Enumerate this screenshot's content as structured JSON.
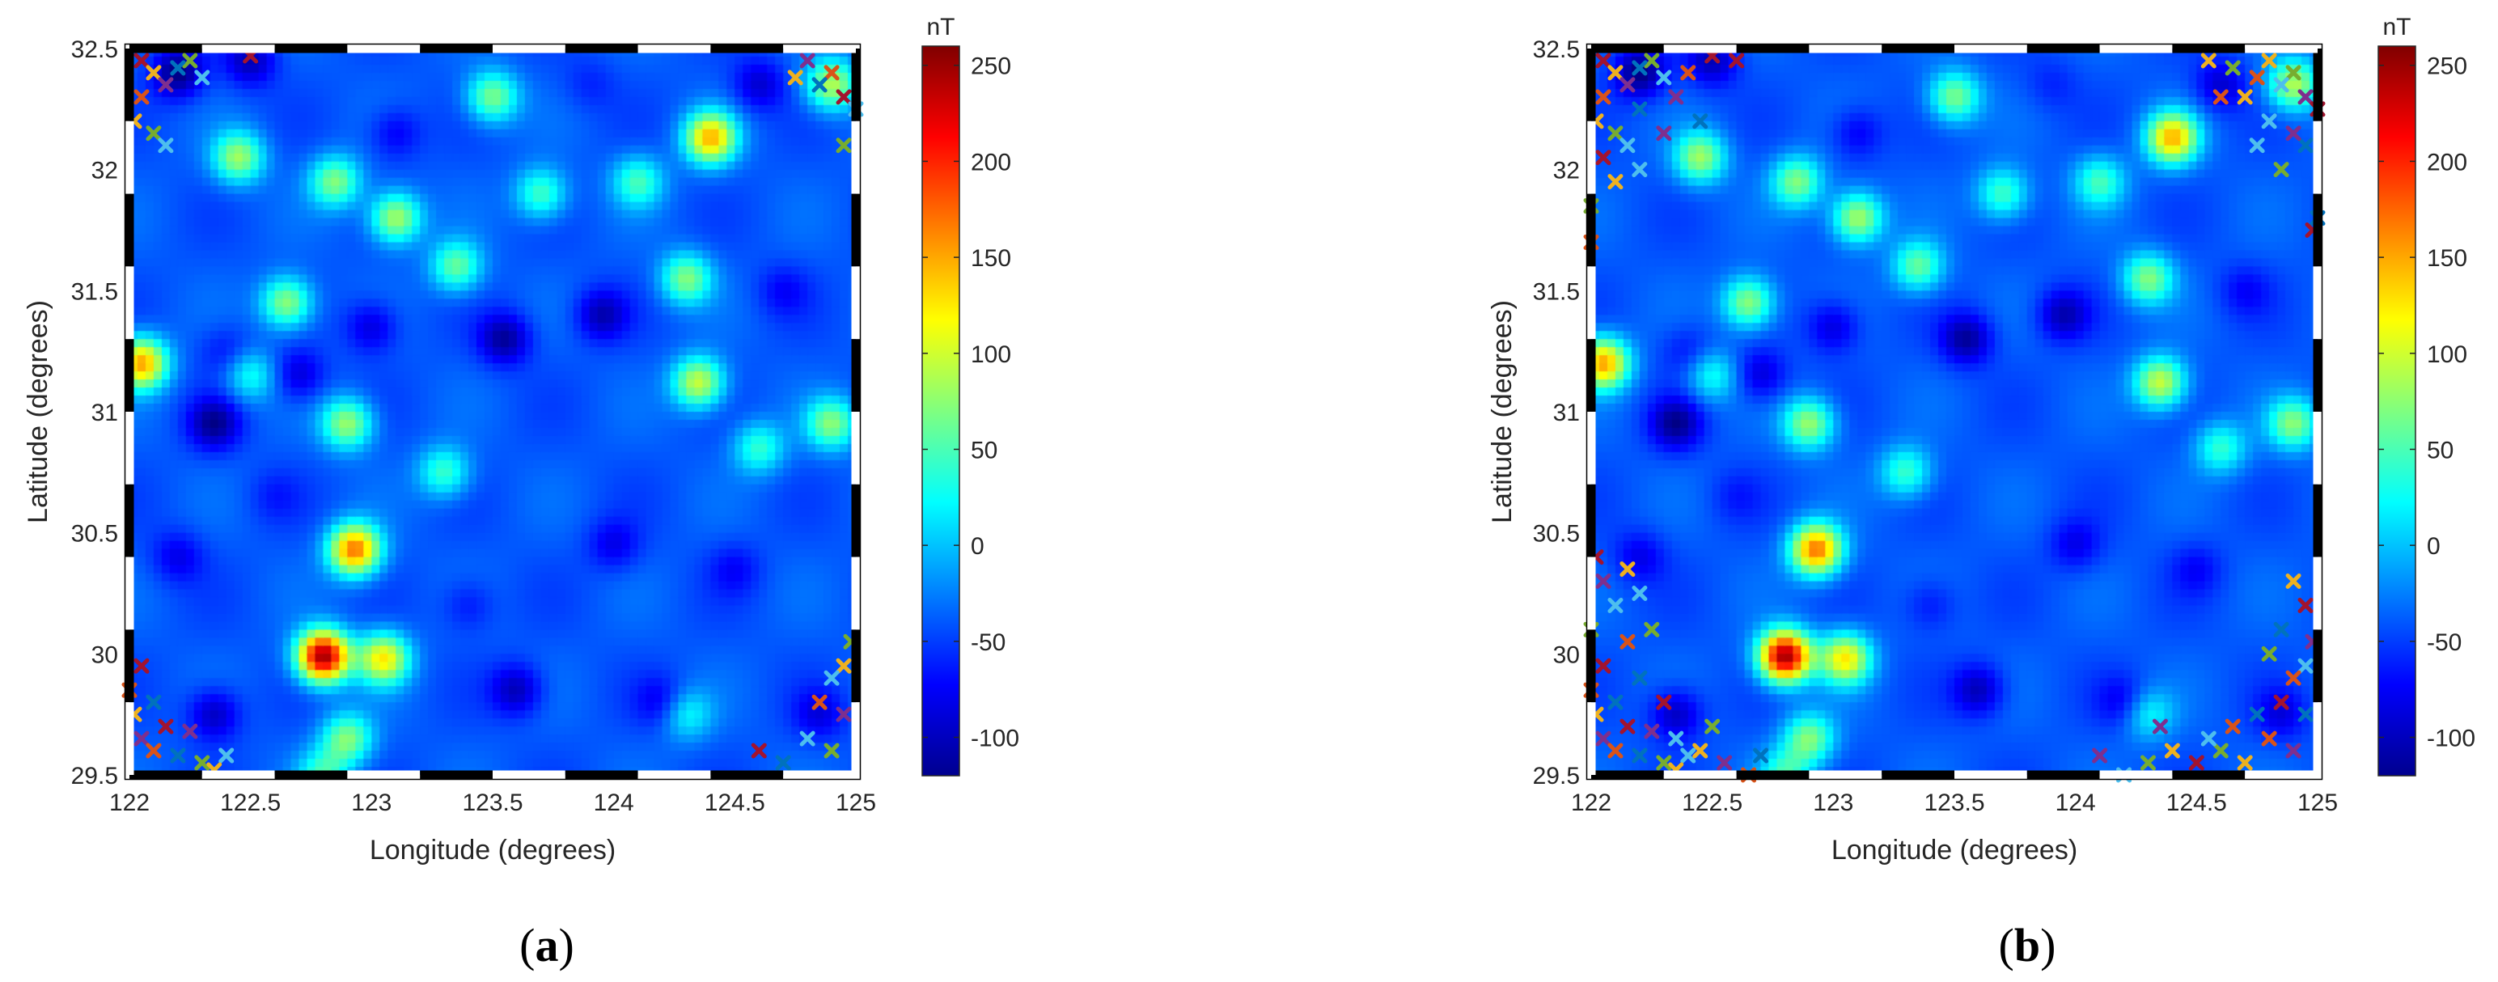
{
  "chart_data": [
    {
      "type": "heatmap",
      "panel_label_open": "(",
      "panel_label": "a",
      "panel_label_close": ")",
      "xlabel": "Longitude (degrees)",
      "ylabel": "Latitude (degrees)",
      "xlim": [
        122,
        125
      ],
      "ylim": [
        29.5,
        32.5
      ],
      "x_ticks": [
        "122",
        "122.5",
        "123",
        "123.5",
        "124",
        "124.5",
        "125"
      ],
      "y_ticks": [
        "29.5",
        "30",
        "30.5",
        "31",
        "31.5",
        "32",
        "32.5"
      ],
      "colorbar": {
        "unit": "nT",
        "range": [
          -120,
          260
        ],
        "ticks": [
          "250",
          "200",
          "150",
          "100",
          "50",
          "0",
          "-50",
          "-100"
        ],
        "colormap": "jet"
      },
      "grid": false,
      "base_value_nT": -40,
      "anomalies": [
        {
          "lon": 122.8,
          "lat": 29.99,
          "value_nT": 250
        },
        {
          "lon": 123.05,
          "lat": 29.98,
          "value_nT": 120
        },
        {
          "lon": 122.93,
          "lat": 30.43,
          "value_nT": 170
        },
        {
          "lon": 124.4,
          "lat": 32.13,
          "value_nT": 140
        },
        {
          "lon": 122.05,
          "lat": 31.2,
          "value_nT": 150
        },
        {
          "lon": 124.35,
          "lat": 31.12,
          "value_nT": 100
        },
        {
          "lon": 124.9,
          "lat": 32.35,
          "value_nT": 90
        },
        {
          "lon": 122.45,
          "lat": 32.05,
          "value_nT": 80
        },
        {
          "lon": 122.85,
          "lat": 31.95,
          "value_nT": 70
        },
        {
          "lon": 123.1,
          "lat": 31.8,
          "value_nT": 90
        },
        {
          "lon": 123.5,
          "lat": 32.3,
          "value_nT": 70
        },
        {
          "lon": 123.35,
          "lat": 31.6,
          "value_nT": 60
        },
        {
          "lon": 123.7,
          "lat": 31.9,
          "value_nT": 50
        },
        {
          "lon": 124.3,
          "lat": 31.55,
          "value_nT": 70
        },
        {
          "lon": 124.1,
          "lat": 31.95,
          "value_nT": 45
        },
        {
          "lon": 122.65,
          "lat": 31.45,
          "value_nT": 80
        },
        {
          "lon": 122.9,
          "lat": 30.95,
          "value_nT": 80
        },
        {
          "lon": 123.3,
          "lat": 30.75,
          "value_nT": 45
        },
        {
          "lon": 122.9,
          "lat": 29.65,
          "value_nT": 70
        },
        {
          "lon": 124.9,
          "lat": 30.95,
          "value_nT": 70
        },
        {
          "lon": 124.6,
          "lat": 30.85,
          "value_nT": 40
        },
        {
          "lon": 122.5,
          "lat": 31.15,
          "value_nT": 30
        },
        {
          "lon": 122.8,
          "lat": 29.5,
          "value_nT": 40
        },
        {
          "lon": 124.3,
          "lat": 29.75,
          "value_nT": 25
        },
        {
          "lon": 122.2,
          "lat": 32.4,
          "value_nT": -120
        },
        {
          "lon": 122.5,
          "lat": 32.45,
          "value_nT": -100
        },
        {
          "lon": 122.4,
          "lat": 31.25,
          "value_nT": -70
        },
        {
          "lon": 122.35,
          "lat": 30.95,
          "value_nT": -110
        },
        {
          "lon": 122.7,
          "lat": 31.15,
          "value_nT": -90
        },
        {
          "lon": 123.1,
          "lat": 32.15,
          "value_nT": -80
        },
        {
          "lon": 123.55,
          "lat": 31.3,
          "value_nT": -110
        },
        {
          "lon": 123.95,
          "lat": 31.4,
          "value_nT": -100
        },
        {
          "lon": 123.0,
          "lat": 31.35,
          "value_nT": -90
        },
        {
          "lon": 124.6,
          "lat": 32.35,
          "value_nT": -90
        },
        {
          "lon": 124.7,
          "lat": 31.5,
          "value_nT": -70
        },
        {
          "lon": 123.6,
          "lat": 29.85,
          "value_nT": -100
        },
        {
          "lon": 124.2,
          "lat": 29.8,
          "value_nT": -80
        },
        {
          "lon": 124.0,
          "lat": 30.45,
          "value_nT": -80
        },
        {
          "lon": 124.5,
          "lat": 30.35,
          "value_nT": -70
        },
        {
          "lon": 122.2,
          "lat": 30.4,
          "value_nT": -80
        },
        {
          "lon": 122.35,
          "lat": 29.75,
          "value_nT": -100
        },
        {
          "lon": 123.4,
          "lat": 30.2,
          "value_nT": -70
        },
        {
          "lon": 124.85,
          "lat": 29.75,
          "value_nT": -80
        },
        {
          "lon": 123.9,
          "lat": 32.35,
          "value_nT": -60
        },
        {
          "lon": 122.6,
          "lat": 30.65,
          "value_nT": -60
        }
      ],
      "markers": {
        "symbol": "x",
        "colors": [
          "#a2142f",
          "#edb120",
          "#77ac30",
          "#4dbeee",
          "#7e2f8e",
          "#d95319",
          "#0072bd"
        ],
        "points": [
          [
            122.05,
            32.45
          ],
          [
            122.1,
            32.4
          ],
          [
            122.25,
            32.45
          ],
          [
            122.3,
            32.38
          ],
          [
            122.15,
            32.35
          ],
          [
            122.05,
            32.3
          ],
          [
            122.2,
            32.42
          ],
          [
            122.5,
            32.47
          ],
          [
            122.02,
            32.2
          ],
          [
            122.1,
            32.15
          ],
          [
            122.15,
            32.1
          ],
          [
            124.8,
            32.45
          ],
          [
            124.9,
            32.4
          ],
          [
            124.85,
            32.35
          ],
          [
            124.95,
            32.3
          ],
          [
            124.75,
            32.38
          ],
          [
            124.95,
            32.1
          ],
          [
            125.0,
            32.25
          ],
          [
            122.05,
            29.65
          ],
          [
            122.1,
            29.6
          ],
          [
            122.2,
            29.58
          ],
          [
            122.15,
            29.7
          ],
          [
            122.02,
            29.75
          ],
          [
            122.3,
            29.55
          ],
          [
            122.4,
            29.58
          ],
          [
            122.25,
            29.68
          ],
          [
            122.0,
            29.85
          ],
          [
            122.1,
            29.8
          ],
          [
            122.05,
            29.95
          ],
          [
            122.35,
            29.52
          ],
          [
            124.9,
            29.6
          ],
          [
            124.8,
            29.65
          ],
          [
            124.95,
            29.75
          ],
          [
            124.85,
            29.8
          ],
          [
            124.7,
            29.55
          ],
          [
            124.6,
            29.6
          ],
          [
            124.95,
            29.95
          ],
          [
            124.98,
            30.05
          ],
          [
            124.9,
            29.9
          ]
        ]
      }
    },
    {
      "type": "heatmap",
      "panel_label_open": "(",
      "panel_label": "b",
      "panel_label_close": ")",
      "xlabel": "Longitude (degrees)",
      "ylabel": "Latitude (degrees)",
      "xlim": [
        122,
        125
      ],
      "ylim": [
        29.5,
        32.5
      ],
      "x_ticks": [
        "122",
        "122.5",
        "123",
        "123.5",
        "124",
        "124.5",
        "125"
      ],
      "y_ticks": [
        "29.5",
        "30",
        "30.5",
        "31",
        "31.5",
        "32",
        "32.5"
      ],
      "colorbar": {
        "unit": "nT",
        "range": [
          -120,
          260
        ],
        "ticks": [
          "250",
          "200",
          "150",
          "100",
          "50",
          "0",
          "-50",
          "-100"
        ],
        "colormap": "jet"
      },
      "grid": false,
      "base_value_nT": -40,
      "anomalies": "same as panel (a)",
      "markers": {
        "symbol": "x",
        "colors": [
          "#a2142f",
          "#edb120",
          "#77ac30",
          "#4dbeee",
          "#7e2f8e",
          "#d95319",
          "#0072bd"
        ],
        "points": [
          [
            122.05,
            32.45
          ],
          [
            122.1,
            32.4
          ],
          [
            122.25,
            32.45
          ],
          [
            122.3,
            32.38
          ],
          [
            122.15,
            32.35
          ],
          [
            122.05,
            32.3
          ],
          [
            122.2,
            32.42
          ],
          [
            122.5,
            32.47
          ],
          [
            122.02,
            32.2
          ],
          [
            122.1,
            32.15
          ],
          [
            122.15,
            32.1
          ],
          [
            122.35,
            32.3
          ],
          [
            122.4,
            32.4
          ],
          [
            122.2,
            32.25
          ],
          [
            122.05,
            32.05
          ],
          [
            122.1,
            31.95
          ],
          [
            122.0,
            31.85
          ],
          [
            122.2,
            32.0
          ],
          [
            122.3,
            32.15
          ],
          [
            122.0,
            31.7
          ],
          [
            122.45,
            32.2
          ],
          [
            122.6,
            32.45
          ],
          [
            124.8,
            32.45
          ],
          [
            124.9,
            32.4
          ],
          [
            124.85,
            32.35
          ],
          [
            124.95,
            32.3
          ],
          [
            124.75,
            32.38
          ],
          [
            124.95,
            32.1
          ],
          [
            125.0,
            32.25
          ],
          [
            124.7,
            32.3
          ],
          [
            124.65,
            32.42
          ],
          [
            124.8,
            32.2
          ],
          [
            124.9,
            32.15
          ],
          [
            124.6,
            32.3
          ],
          [
            125.0,
            31.8
          ],
          [
            124.98,
            31.75
          ],
          [
            124.55,
            32.45
          ],
          [
            124.85,
            32.0
          ],
          [
            124.75,
            32.1
          ],
          [
            122.05,
            29.65
          ],
          [
            122.1,
            29.6
          ],
          [
            122.2,
            29.58
          ],
          [
            122.15,
            29.7
          ],
          [
            122.02,
            29.75
          ],
          [
            122.3,
            29.55
          ],
          [
            122.4,
            29.58
          ],
          [
            122.25,
            29.68
          ],
          [
            122.0,
            29.85
          ],
          [
            122.1,
            29.8
          ],
          [
            122.05,
            29.95
          ],
          [
            122.35,
            29.52
          ],
          [
            122.0,
            30.1
          ],
          [
            122.1,
            30.2
          ],
          [
            122.05,
            30.3
          ],
          [
            122.15,
            30.05
          ],
          [
            122.2,
            29.9
          ],
          [
            122.3,
            29.8
          ],
          [
            122.45,
            29.6
          ],
          [
            122.5,
            29.7
          ],
          [
            122.35,
            29.65
          ],
          [
            122.55,
            29.55
          ],
          [
            122.65,
            29.5
          ],
          [
            122.7,
            29.58
          ],
          [
            122.02,
            30.4
          ],
          [
            122.15,
            30.35
          ],
          [
            122.25,
            30.1
          ],
          [
            122.2,
            30.25
          ],
          [
            124.9,
            29.6
          ],
          [
            124.8,
            29.65
          ],
          [
            124.95,
            29.75
          ],
          [
            124.85,
            29.8
          ],
          [
            124.7,
            29.55
          ],
          [
            124.6,
            29.6
          ],
          [
            124.95,
            29.95
          ],
          [
            124.98,
            30.05
          ],
          [
            124.9,
            29.9
          ],
          [
            124.75,
            29.75
          ],
          [
            124.5,
            29.55
          ],
          [
            124.4,
            29.6
          ],
          [
            124.3,
            29.55
          ],
          [
            124.2,
            29.5
          ],
          [
            124.1,
            29.58
          ],
          [
            124.65,
            29.7
          ],
          [
            124.85,
            30.1
          ],
          [
            124.95,
            30.2
          ],
          [
            124.9,
            30.3
          ],
          [
            124.8,
            30.0
          ],
          [
            124.55,
            29.65
          ],
          [
            124.35,
            29.7
          ]
        ]
      }
    }
  ]
}
